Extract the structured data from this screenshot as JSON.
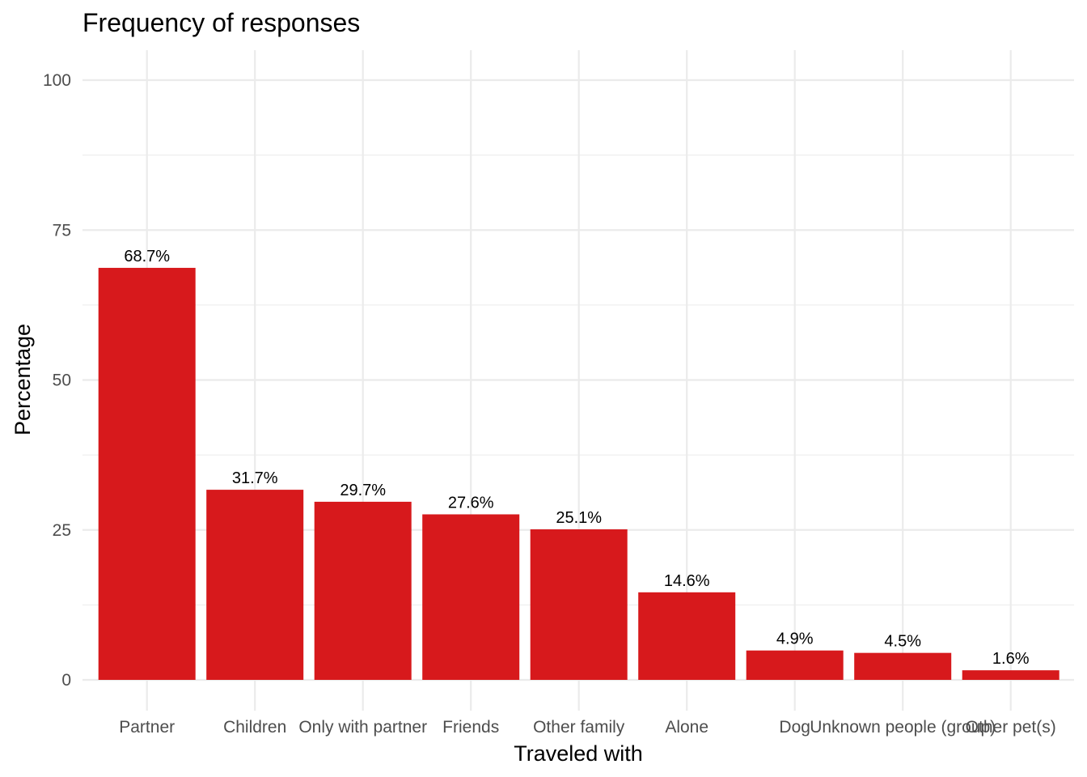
{
  "chart_data": {
    "type": "bar",
    "title": "Frequency of responses",
    "xlabel": "Traveled with",
    "ylabel": "Percentage",
    "ylim": [
      0,
      100
    ],
    "yticks": [
      0,
      25,
      50,
      75,
      100
    ],
    "grid": true,
    "legend": "none",
    "bar_color": "#d7191c",
    "categories": [
      "Partner",
      "Children",
      "Only with partner",
      "Friends",
      "Other family",
      "Alone",
      "Dog",
      "Unknown people (group)",
      "Other pet(s)"
    ],
    "values": [
      68.7,
      31.7,
      29.7,
      27.6,
      25.1,
      14.6,
      4.9,
      4.5,
      1.6
    ],
    "data_labels": [
      "68.7%",
      "31.7%",
      "29.7%",
      "27.6%",
      "25.1%",
      "14.6%",
      "4.9%",
      "4.5%",
      "1.6%"
    ]
  }
}
